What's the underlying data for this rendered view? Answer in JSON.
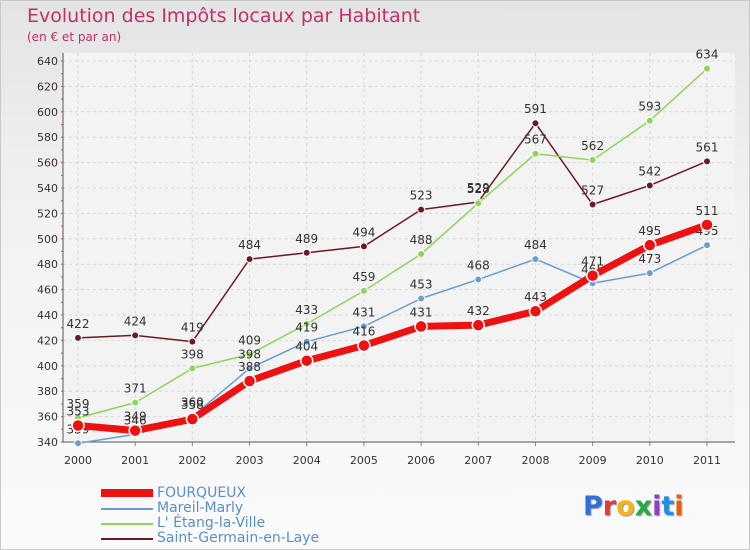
{
  "header": {
    "title": "Evolution des Impôts locaux par Habitant",
    "subtitle": "(en € et par an)"
  },
  "logo": {
    "text": "Proxiti",
    "colors": [
      "#2f6fd8",
      "#e23b3b",
      "#f5b31b",
      "#29a84a",
      "#8b3fc2",
      "#1f8fe0",
      "#e85d12"
    ]
  },
  "chart_data": {
    "type": "line",
    "title": "Evolution des Impôts locaux par Habitant",
    "ylabel": "(en € et par an)",
    "x": [
      "2000",
      "2001",
      "2002",
      "2003",
      "2004",
      "2005",
      "2006",
      "2007",
      "2008",
      "2009",
      "2010",
      "2011"
    ],
    "ylim": [
      340,
      640
    ],
    "yticks": [
      340,
      360,
      380,
      400,
      420,
      440,
      460,
      480,
      500,
      520,
      540,
      560,
      580,
      600,
      620,
      640
    ],
    "grid": true,
    "legend_position": "bottom-left",
    "series": [
      {
        "name": "Saint-Germain-en-Laye",
        "color": "#6b1a22",
        "values": [
          422,
          424,
          419,
          484,
          489,
          494,
          523,
          529,
          591,
          527,
          542,
          561
        ]
      },
      {
        "name": "L' Étang-la-Ville",
        "color": "#8fd35a",
        "values": [
          359,
          371,
          398,
          409,
          433,
          459,
          488,
          528,
          567,
          562,
          593,
          634
        ]
      },
      {
        "name": "Mareil-Marly",
        "color": "#6a9ccf",
        "values": [
          339,
          346,
          360,
          398,
          419,
          431,
          453,
          468,
          484,
          465,
          473,
          495
        ]
      },
      {
        "name": "FOURQUEUX",
        "color": "#ee1111",
        "values": [
          353,
          349,
          358,
          388,
          404,
          416,
          431,
          432,
          443,
          471,
          495,
          511
        ]
      }
    ],
    "legend": [
      "FOURQUEUX",
      "Mareil-Marly",
      "L' Étang-la-Ville",
      "Saint-Germain-en-Laye"
    ]
  }
}
